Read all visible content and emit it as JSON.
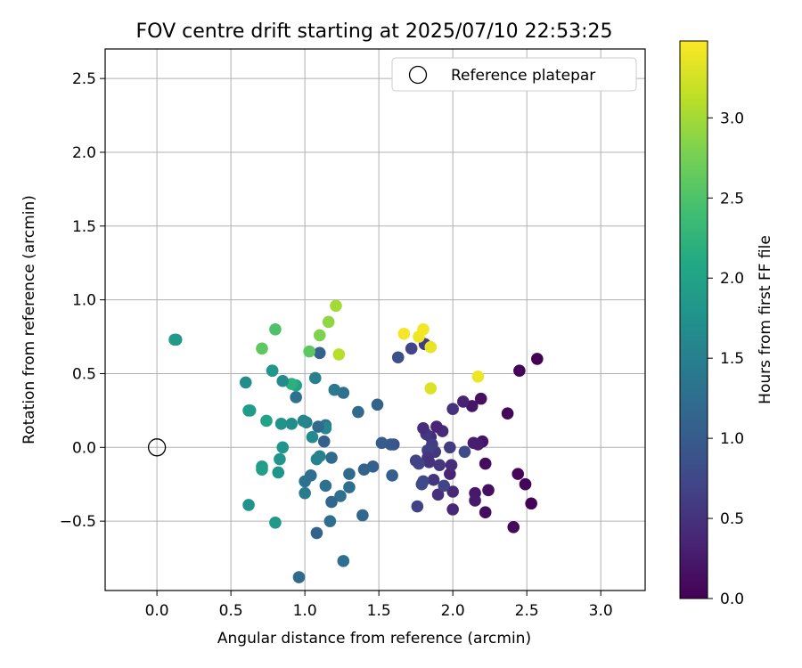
{
  "chart_data": {
    "type": "scatter",
    "title": "FOV centre drift starting at 2025/07/10 22:53:25",
    "xlabel": "Angular distance from reference (arcmin)",
    "ylabel": "Rotation from reference (arcmin)",
    "xlim": [
      -0.35,
      3.3
    ],
    "ylim": [
      -0.97,
      2.7
    ],
    "xticks": [
      "0.0",
      "0.5",
      "1.0",
      "1.5",
      "2.0",
      "2.5",
      "3.0"
    ],
    "yticks": [
      "-0.5",
      "0.0",
      "0.5",
      "1.0",
      "1.5",
      "2.0",
      "2.5"
    ],
    "grid": true,
    "legend": {
      "position": "top-right",
      "label": "Reference platepar"
    },
    "reference_point": {
      "x": 0.0,
      "y": 0.0
    },
    "colorbar": {
      "label": "Hours from first FF file",
      "range": [
        0,
        3.48
      ],
      "ticks": [
        "0.0",
        "0.5",
        "1.0",
        "1.5",
        "2.0",
        "2.5",
        "3.0"
      ],
      "colormap": "viridis"
    },
    "points": [
      {
        "x": 2.57,
        "y": 0.6,
        "h": 0.0
      },
      {
        "x": 2.45,
        "y": 0.52,
        "h": 0.03
      },
      {
        "x": 2.37,
        "y": 0.23,
        "h": 0.06
      },
      {
        "x": 2.44,
        "y": -0.18,
        "h": 0.05
      },
      {
        "x": 2.49,
        "y": -0.25,
        "h": 0.04
      },
      {
        "x": 2.53,
        "y": -0.38,
        "h": 0.02
      },
      {
        "x": 2.41,
        "y": -0.54,
        "h": 0.08
      },
      {
        "x": 2.24,
        "y": -0.29,
        "h": 0.15
      },
      {
        "x": 2.22,
        "y": -0.44,
        "h": 0.12
      },
      {
        "x": 2.22,
        "y": -0.11,
        "h": 0.1
      },
      {
        "x": 2.2,
        "y": 0.04,
        "h": 0.18
      },
      {
        "x": 2.19,
        "y": 0.33,
        "h": 0.14
      },
      {
        "x": 2.13,
        "y": 0.28,
        "h": 0.2
      },
      {
        "x": 2.15,
        "y": -0.31,
        "h": 0.22
      },
      {
        "x": 2.15,
        "y": -0.36,
        "h": 0.25
      },
      {
        "x": 2.14,
        "y": 0.03,
        "h": 0.3
      },
      {
        "x": 2.17,
        "y": 0.02,
        "h": 0.28
      },
      {
        "x": 2.07,
        "y": 0.31,
        "h": 0.33
      },
      {
        "x": 2.0,
        "y": 0.26,
        "h": 0.5
      },
      {
        "x": 2.08,
        "y": -0.03,
        "h": 0.8
      },
      {
        "x": 2.0,
        "y": -0.42,
        "h": 0.38
      },
      {
        "x": 2.0,
        "y": -0.3,
        "h": 0.4
      },
      {
        "x": 1.98,
        "y": -0.18,
        "h": 0.35
      },
      {
        "x": 1.99,
        "y": -0.12,
        "h": 0.45
      },
      {
        "x": 1.98,
        "y": 0.0,
        "h": 0.6
      },
      {
        "x": 1.93,
        "y": 0.11,
        "h": 0.42
      },
      {
        "x": 1.89,
        "y": 0.14,
        "h": 0.36
      },
      {
        "x": 1.91,
        "y": -0.12,
        "h": 0.55
      },
      {
        "x": 1.9,
        "y": -0.32,
        "h": 0.48
      },
      {
        "x": 1.94,
        "y": -0.26,
        "h": 0.7
      },
      {
        "x": 1.87,
        "y": -0.22,
        "h": 0.52
      },
      {
        "x": 1.85,
        "y": 0.07,
        "h": 0.44
      },
      {
        "x": 1.88,
        "y": -0.03,
        "h": 0.58
      },
      {
        "x": 1.86,
        "y": 0.02,
        "h": 0.62
      },
      {
        "x": 1.82,
        "y": 0.09,
        "h": 0.56
      },
      {
        "x": 1.8,
        "y": 0.13,
        "h": 0.46
      },
      {
        "x": 1.83,
        "y": -0.02,
        "h": 0.65
      },
      {
        "x": 1.83,
        "y": -0.07,
        "h": 0.54
      },
      {
        "x": 1.84,
        "y": -0.1,
        "h": 0.5
      },
      {
        "x": 1.8,
        "y": -0.23,
        "h": 0.75
      },
      {
        "x": 1.79,
        "y": -0.25,
        "h": 0.78
      },
      {
        "x": 1.77,
        "y": -0.11,
        "h": 0.72
      },
      {
        "x": 1.75,
        "y": -0.09,
        "h": 0.68
      },
      {
        "x": 1.76,
        "y": -0.4,
        "h": 0.66
      },
      {
        "x": 1.81,
        "y": 0.7,
        "h": 0.6
      },
      {
        "x": 1.72,
        "y": 0.67,
        "h": 0.7
      },
      {
        "x": 1.63,
        "y": 0.61,
        "h": 0.85
      },
      {
        "x": 1.6,
        "y": 0.02,
        "h": 0.85
      },
      {
        "x": 1.58,
        "y": 0.02,
        "h": 0.95
      },
      {
        "x": 1.59,
        "y": -0.19,
        "h": 1.05
      },
      {
        "x": 1.52,
        "y": 0.03,
        "h": 1.0
      },
      {
        "x": 1.49,
        "y": 0.29,
        "h": 1.1
      },
      {
        "x": 1.46,
        "y": -0.13,
        "h": 1.05
      },
      {
        "x": 1.4,
        "y": -0.15,
        "h": 1.1
      },
      {
        "x": 1.39,
        "y": -0.46,
        "h": 1.15
      },
      {
        "x": 1.36,
        "y": 0.24,
        "h": 1.2
      },
      {
        "x": 1.3,
        "y": -0.18,
        "h": 1.2
      },
      {
        "x": 1.3,
        "y": -0.27,
        "h": 1.25
      },
      {
        "x": 1.26,
        "y": 0.37,
        "h": 1.3
      },
      {
        "x": 1.26,
        "y": -0.77,
        "h": 1.25
      },
      {
        "x": 1.24,
        "y": -0.33,
        "h": 1.28
      },
      {
        "x": 1.2,
        "y": 0.39,
        "h": 1.4
      },
      {
        "x": 1.18,
        "y": -0.07,
        "h": 1.2
      },
      {
        "x": 1.18,
        "y": -0.37,
        "h": 1.15
      },
      {
        "x": 1.17,
        "y": -0.5,
        "h": 1.25
      },
      {
        "x": 1.14,
        "y": 0.15,
        "h": 1.35
      },
      {
        "x": 1.14,
        "y": 0.13,
        "h": 1.6
      },
      {
        "x": 1.14,
        "y": -0.26,
        "h": 1.3
      },
      {
        "x": 1.13,
        "y": 0.04,
        "h": 1.05
      },
      {
        "x": 1.1,
        "y": 0.64,
        "h": 1.1
      },
      {
        "x": 1.1,
        "y": -0.06,
        "h": 1.5
      },
      {
        "x": 1.09,
        "y": 0.14,
        "h": 1.2
      },
      {
        "x": 1.08,
        "y": -0.08,
        "h": 1.55
      },
      {
        "x": 1.08,
        "y": -0.58,
        "h": 1.1
      },
      {
        "x": 1.07,
        "y": 0.47,
        "h": 1.5
      },
      {
        "x": 1.05,
        "y": 0.07,
        "h": 1.65
      },
      {
        "x": 1.04,
        "y": -0.19,
        "h": 1.25
      },
      {
        "x": 1.01,
        "y": 0.17,
        "h": 1.55
      },
      {
        "x": 1.0,
        "y": -0.23,
        "h": 1.3
      },
      {
        "x": 1.0,
        "y": -0.31,
        "h": 1.45
      },
      {
        "x": 0.99,
        "y": 0.18,
        "h": 1.6
      },
      {
        "x": 0.96,
        "y": -0.88,
        "h": 1.2
      },
      {
        "x": 0.94,
        "y": 0.34,
        "h": 1.3
      },
      {
        "x": 0.94,
        "y": 0.42,
        "h": 2.0
      },
      {
        "x": 0.91,
        "y": 0.43,
        "h": 2.2
      },
      {
        "x": 0.91,
        "y": 0.16,
        "h": 1.7
      },
      {
        "x": 0.85,
        "y": 0.45,
        "h": 1.65
      },
      {
        "x": 0.85,
        "y": 0.0,
        "h": 1.8
      },
      {
        "x": 0.84,
        "y": 0.16,
        "h": 1.75
      },
      {
        "x": 0.83,
        "y": -0.08,
        "h": 1.8
      },
      {
        "x": 0.82,
        "y": -0.17,
        "h": 1.8
      },
      {
        "x": 0.8,
        "y": 0.8,
        "h": 2.5
      },
      {
        "x": 0.8,
        "y": -0.51,
        "h": 1.85
      },
      {
        "x": 0.78,
        "y": 0.52,
        "h": 1.8
      },
      {
        "x": 0.78,
        "y": 0.52,
        "h": 1.82
      },
      {
        "x": 0.74,
        "y": 0.18,
        "h": 2.0
      },
      {
        "x": 0.71,
        "y": 0.67,
        "h": 2.6
      },
      {
        "x": 0.71,
        "y": -0.13,
        "h": 1.9
      },
      {
        "x": 0.71,
        "y": -0.15,
        "h": 1.95
      },
      {
        "x": 0.63,
        "y": 0.25,
        "h": 1.95
      },
      {
        "x": 0.62,
        "y": 0.25,
        "h": 1.9
      },
      {
        "x": 0.62,
        "y": -0.39,
        "h": 1.75
      },
      {
        "x": 0.6,
        "y": 0.44,
        "h": 1.7
      },
      {
        "x": 0.13,
        "y": 0.73,
        "h": 1.85
      },
      {
        "x": 0.12,
        "y": 0.73,
        "h": 1.88
      },
      {
        "x": 1.03,
        "y": 0.65,
        "h": 2.6
      },
      {
        "x": 1.1,
        "y": 0.76,
        "h": 2.8
      },
      {
        "x": 1.16,
        "y": 0.85,
        "h": 2.9
      },
      {
        "x": 1.21,
        "y": 0.96,
        "h": 3.0
      },
      {
        "x": 1.23,
        "y": 0.63,
        "h": 3.1
      },
      {
        "x": 1.67,
        "y": 0.77,
        "h": 3.45
      },
      {
        "x": 1.77,
        "y": 0.75,
        "h": 3.4
      },
      {
        "x": 1.8,
        "y": 0.8,
        "h": 3.42
      },
      {
        "x": 1.85,
        "y": 0.68,
        "h": 3.35
      },
      {
        "x": 1.85,
        "y": 0.4,
        "h": 3.3
      },
      {
        "x": 2.17,
        "y": 0.48,
        "h": 3.4
      }
    ]
  }
}
